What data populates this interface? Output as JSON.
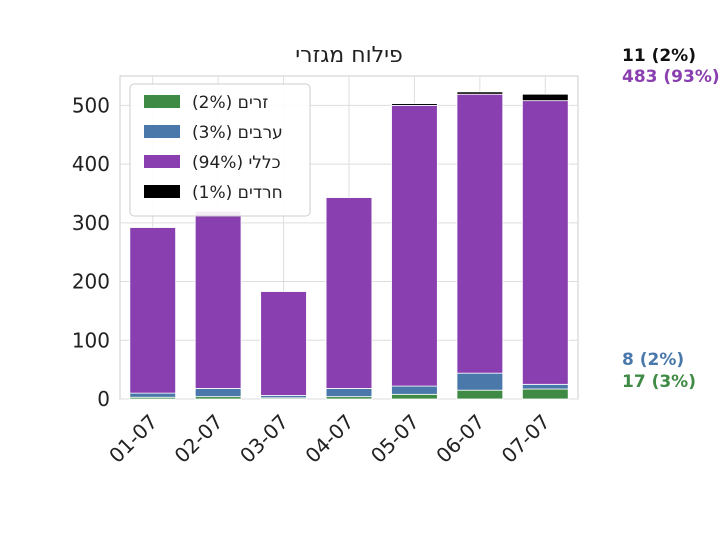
{
  "colors": {
    "foreign": "#3f8a45",
    "arab": "#4a78aa",
    "general": "#8a3fb1",
    "haredi": "#000000",
    "grid": "#dedede",
    "axis": "#cccccc",
    "text": "#222222"
  },
  "side_labels": {
    "haredi": "11 (2%)",
    "general": "483 (93%)",
    "arab": "8 (2%)",
    "foreign": "17 (3%)"
  },
  "chart_data": {
    "type": "bar",
    "stacked": true,
    "title": "פילוח מגזרי",
    "categories": [
      "01-07",
      "02-07",
      "03-07",
      "04-07",
      "05-07",
      "06-07",
      "07-07"
    ],
    "ylim": [
      0,
      550
    ],
    "yticks": [
      0,
      100,
      200,
      300,
      400,
      500
    ],
    "grid": true,
    "legend_position": "top-left",
    "series": [
      {
        "key": "foreign",
        "name": "זרים (2%)",
        "color": "#3f8a45",
        "values": [
          3,
          4,
          2,
          4,
          8,
          15,
          17
        ]
      },
      {
        "key": "arab",
        "name": "ערבים (3%)",
        "color": "#4a78aa",
        "values": [
          7,
          14,
          4,
          14,
          14,
          29,
          8
        ]
      },
      {
        "key": "general",
        "name": "כללי (94%)",
        "color": "#8a3fb1",
        "values": [
          282,
          302,
          177,
          325,
          478,
          475,
          483
        ]
      },
      {
        "key": "haredi",
        "name": "חרדים (1%)",
        "color": "#000000",
        "values": [
          0,
          0,
          0,
          0,
          3,
          4,
          11
        ]
      }
    ]
  }
}
